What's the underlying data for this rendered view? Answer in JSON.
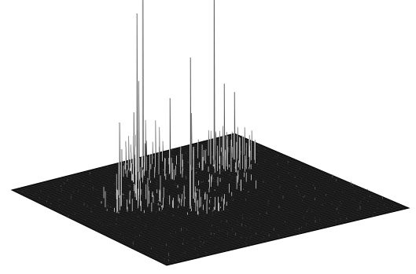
{
  "chart_data": {
    "type": "surface",
    "title": "",
    "xlabel": "",
    "ylabel": "",
    "zlabel": "",
    "grid": false,
    "legend": "none",
    "colors": {
      "background": "#ffffff",
      "surface_base": "#151515",
      "mesh_line": "#2c2c2c",
      "spike_light": "#d8d8d8",
      "spike_dark": "#0a0a0a"
    },
    "u_range": [
      0,
      1
    ],
    "v_range": [
      0,
      1
    ],
    "z_range": [
      0,
      1
    ],
    "peaks": [
      {
        "u": 0.3,
        "v": 0.36,
        "height": 0.72
      },
      {
        "u": 0.42,
        "v": 0.52,
        "height": 0.57
      },
      {
        "u": 0.52,
        "v": 0.09,
        "height": 0.97
      },
      {
        "u": 0.77,
        "v": 0.18,
        "height": 0.8
      },
      {
        "u": 0.48,
        "v": 0.12,
        "height": 0.35
      },
      {
        "u": 0.56,
        "v": 0.2,
        "height": 0.29
      },
      {
        "u": 0.4,
        "v": 0.2,
        "height": 0.27
      },
      {
        "u": 0.74,
        "v": 0.28,
        "height": 0.33
      },
      {
        "u": 0.83,
        "v": 0.22,
        "height": 0.26
      },
      {
        "u": 0.64,
        "v": 0.22,
        "height": 0.22
      },
      {
        "u": 0.28,
        "v": 0.28,
        "height": 0.28
      },
      {
        "u": 0.22,
        "v": 0.38,
        "height": 0.22
      },
      {
        "u": 0.34,
        "v": 0.3,
        "height": 0.18
      },
      {
        "u": 0.47,
        "v": 0.47,
        "height": 0.2
      },
      {
        "u": 0.4,
        "v": 0.55,
        "height": 0.17
      }
    ],
    "clusters": [
      {
        "u": 0.28,
        "v": 0.38,
        "spread": 0.13,
        "density": 60,
        "max_height": 0.18
      },
      {
        "u": 0.44,
        "v": 0.55,
        "spread": 0.1,
        "density": 45,
        "max_height": 0.12
      },
      {
        "u": 0.52,
        "v": 0.15,
        "spread": 0.12,
        "density": 75,
        "max_height": 0.24
      },
      {
        "u": 0.78,
        "v": 0.23,
        "spread": 0.12,
        "density": 75,
        "max_height": 0.26
      },
      {
        "u": 0.62,
        "v": 0.4,
        "spread": 0.15,
        "density": 35,
        "max_height": 0.08
      }
    ]
  }
}
